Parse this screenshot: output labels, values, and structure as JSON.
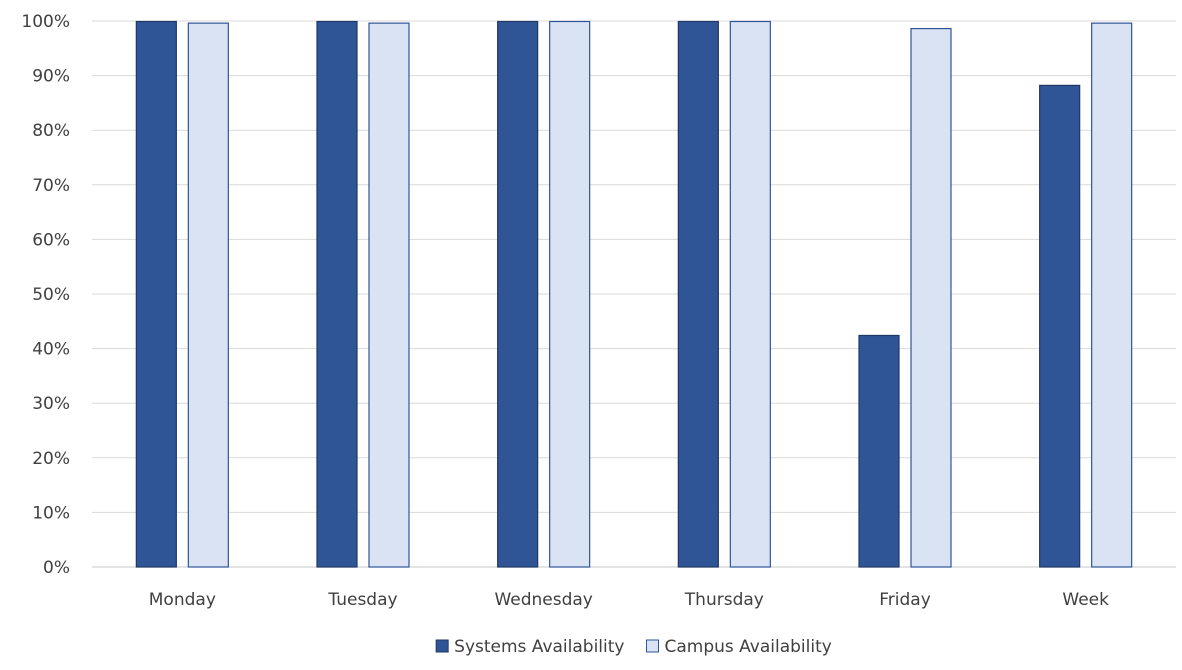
{
  "chart_data": {
    "type": "bar",
    "categories": [
      "Monday",
      "Tuesday",
      "Wednesday",
      "Thursday",
      "Friday",
      "Week"
    ],
    "series": [
      {
        "name": "Systems Availability",
        "values": [
          100,
          100,
          100,
          100,
          42.5,
          88.3
        ],
        "color": "#2f5597",
        "border": "#1f3864"
      },
      {
        "name": "Campus Availability",
        "values": [
          99.7,
          99.7,
          100,
          100,
          98.7,
          99.7
        ],
        "color": "#dae3f3",
        "border": "#2f5597"
      }
    ],
    "y_ticks": [
      "0%",
      "10%",
      "20%",
      "30%",
      "40%",
      "50%",
      "60%",
      "70%",
      "80%",
      "90%",
      "100%"
    ],
    "ylim": [
      0,
      100
    ],
    "grid": true,
    "legend_position": "bottom-center",
    "title": "",
    "xlabel": "",
    "ylabel": ""
  }
}
